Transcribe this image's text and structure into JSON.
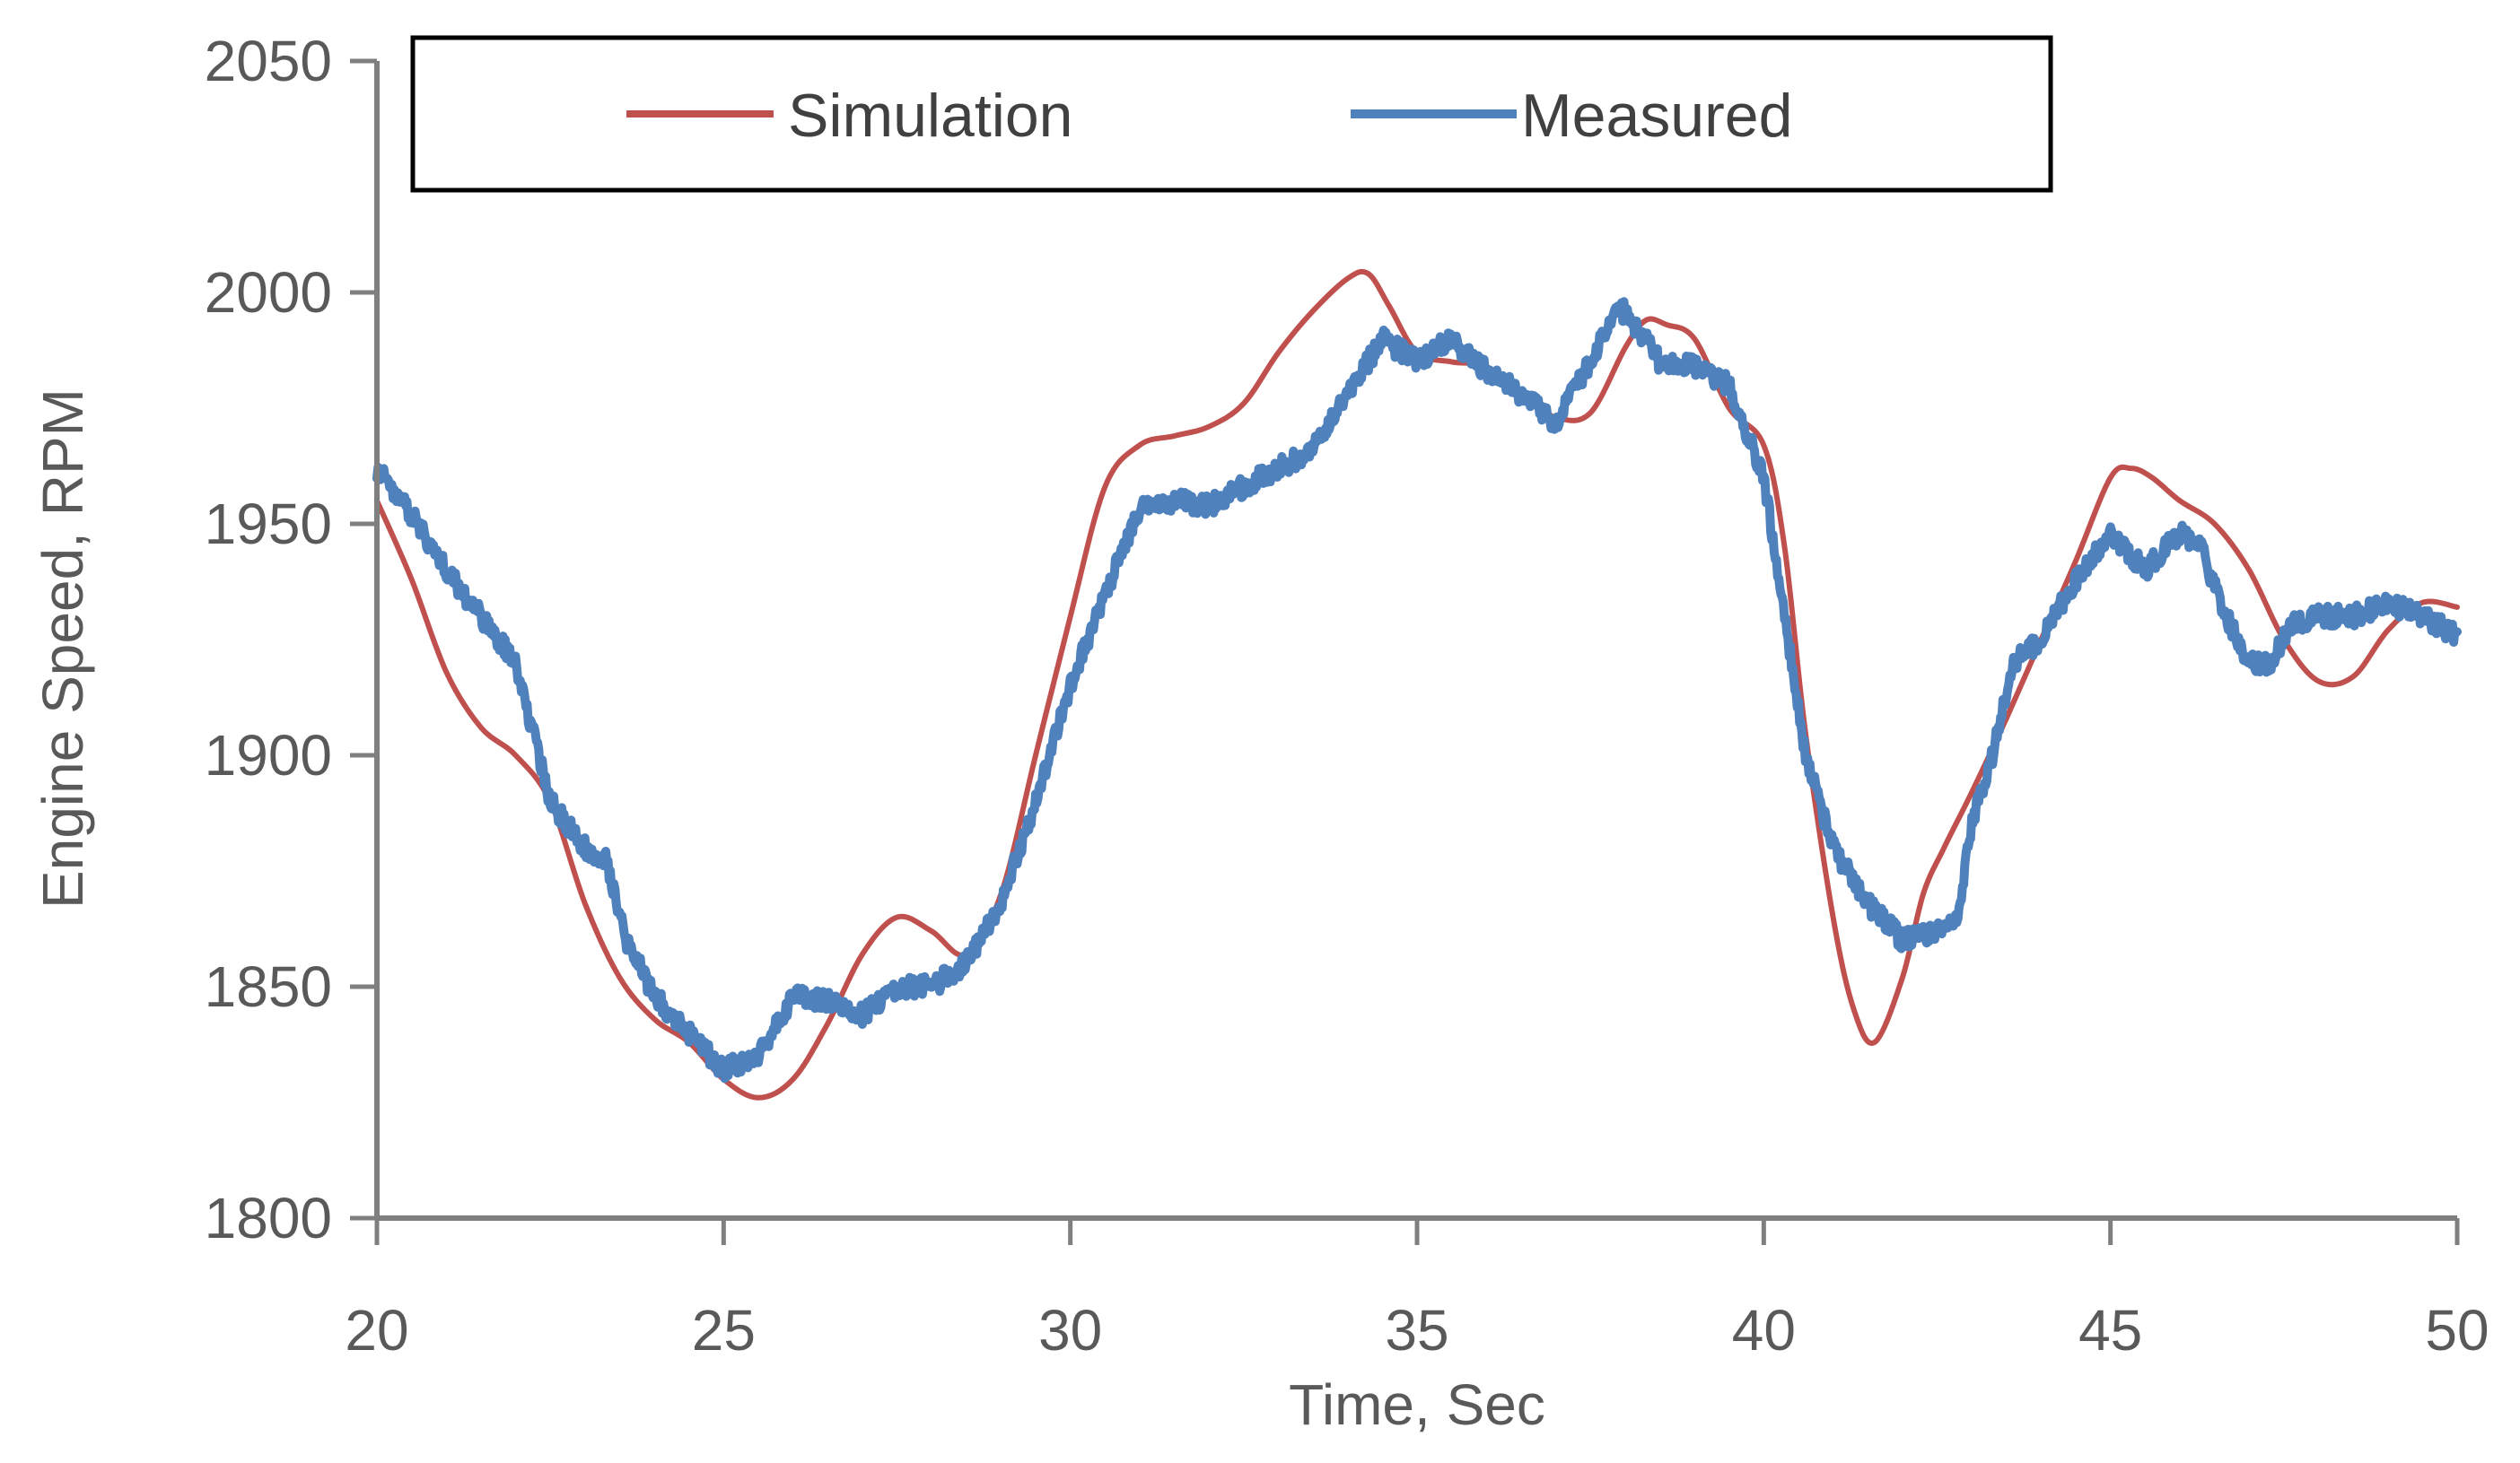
{
  "chart_data": {
    "type": "line",
    "xlabel": "Time, Sec",
    "ylabel": "Engine Speed, RPM",
    "xlim": [
      20,
      50
    ],
    "ylim": [
      1800,
      2050
    ],
    "xticks": [
      20,
      25,
      30,
      35,
      40,
      45,
      50
    ],
    "yticks": [
      1800,
      1850,
      1900,
      1950,
      2000,
      2050
    ],
    "grid": false,
    "legend_position": "top",
    "series": [
      {
        "name": "Simulation",
        "color": "#C0504D",
        "noise": 0,
        "x": [
          20,
          20.5,
          21,
          21.5,
          22,
          22.5,
          23,
          23.5,
          24,
          24.5,
          25,
          25.5,
          26,
          26.5,
          27,
          27.5,
          28,
          28.5,
          29,
          29.5,
          30,
          30.5,
          31,
          31.5,
          32,
          32.5,
          33,
          33.5,
          34,
          34.3,
          34.6,
          35,
          35.5,
          36,
          36.5,
          37,
          37.5,
          38,
          38.3,
          38.6,
          39,
          39.5,
          40,
          40.3,
          40.6,
          41,
          41.3,
          41.6,
          42,
          42.3,
          42.6,
          43,
          43.5,
          44,
          44.5,
          45,
          45.3,
          45.6,
          46,
          46.5,
          47,
          47.5,
          48,
          48.5,
          49,
          49.5,
          50
        ],
        "y": [
          1955,
          1938,
          1918,
          1906,
          1900,
          1890,
          1868,
          1852,
          1843,
          1838,
          1830,
          1826,
          1830,
          1842,
          1857,
          1865,
          1862,
          1857,
          1870,
          1900,
          1930,
          1958,
          1967,
          1969,
          1971,
          1976,
          1987,
          1996,
          2003,
          2004,
          1997,
          1987,
          1985,
          1984,
          1978,
          1973,
          1974,
          1988,
          1994,
          1993,
          1990,
          1975,
          1967,
          1945,
          1905,
          1865,
          1845,
          1838,
          1852,
          1870,
          1880,
          1892,
          1908,
          1925,
          1942,
          1960,
          1962,
          1960,
          1955,
          1950,
          1940,
          1925,
          1916,
          1917,
          1927,
          1933,
          1932
        ]
      },
      {
        "name": "Measured",
        "color": "#4F81BD",
        "noise": 2.2,
        "x": [
          20,
          20.5,
          21,
          21.5,
          22,
          22.5,
          23,
          23.3,
          23.6,
          24,
          24.5,
          25,
          25.5,
          26,
          26.5,
          27,
          27.5,
          28,
          28.5,
          29,
          29.5,
          30,
          30.5,
          31,
          31.5,
          32,
          32.5,
          33,
          33.5,
          34,
          34.5,
          35,
          35.5,
          36,
          36.5,
          37,
          37.5,
          37.8,
          38,
          38.5,
          39,
          39.5,
          40,
          40.3,
          40.6,
          41,
          41.5,
          42,
          42.5,
          42.8,
          43,
          43.3,
          43.6,
          44,
          44.5,
          45,
          45.5,
          46,
          46.3,
          46.6,
          47,
          47.3,
          47.6,
          48,
          48.5,
          49,
          49.5,
          50
        ],
        "y": [
          1962,
          1952,
          1940,
          1930,
          1920,
          1890,
          1880,
          1878,
          1860,
          1848,
          1840,
          1832,
          1835,
          1848,
          1847,
          1844,
          1850,
          1850,
          1855,
          1868,
          1890,
          1915,
          1935,
          1953,
          1955,
          1954,
          1958,
          1962,
          1966,
          1978,
          1990,
          1985,
          1990,
          1983,
          1978,
          1972,
          1985,
          1995,
          1996,
          1985,
          1984,
          1980,
          1960,
          1930,
          1900,
          1880,
          1868,
          1860,
          1862,
          1865,
          1885,
          1900,
          1920,
          1925,
          1938,
          1948,
          1940,
          1948,
          1945,
          1932,
          1920,
          1920,
          1928,
          1930,
          1930,
          1933,
          1930,
          1926
        ]
      }
    ]
  }
}
